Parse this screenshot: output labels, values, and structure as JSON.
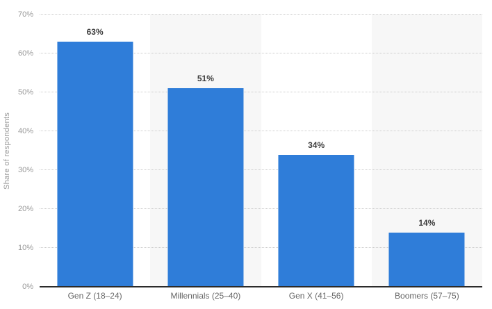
{
  "chart": {
    "colors": {
      "background": "#ffffff",
      "bar_blue": "#2f7dd9",
      "column_band_gray": "#f7f7f7",
      "gridline_gray": "#cbcbcb",
      "axis_line_dark": "#2b2b2b",
      "tick_label_gray": "#9a9a9a",
      "value_label_dark": "#3d3d3d",
      "category_label_gray": "#666666"
    }
  },
  "chart_data": {
    "type": "bar",
    "categories": [
      "Gen Z (18–24)",
      "Millennials (25–40)",
      "Gen X (41–56)",
      "Boomers (57–75)"
    ],
    "values": [
      63,
      51,
      34,
      14
    ],
    "value_labels": [
      "63%",
      "51%",
      "34%",
      "14%"
    ],
    "ylabel": "Share of respondents",
    "xlabel": "",
    "ylim": [
      0,
      70
    ],
    "ytick_step": 10,
    "ytick_labels": [
      "0%",
      "10%",
      "20%",
      "30%",
      "40%",
      "50%",
      "60%",
      "70%"
    ],
    "grid": "horizontal-dotted",
    "legend": "none",
    "plot_bands": "alternating vertical bands behind columns 2 and 4"
  }
}
